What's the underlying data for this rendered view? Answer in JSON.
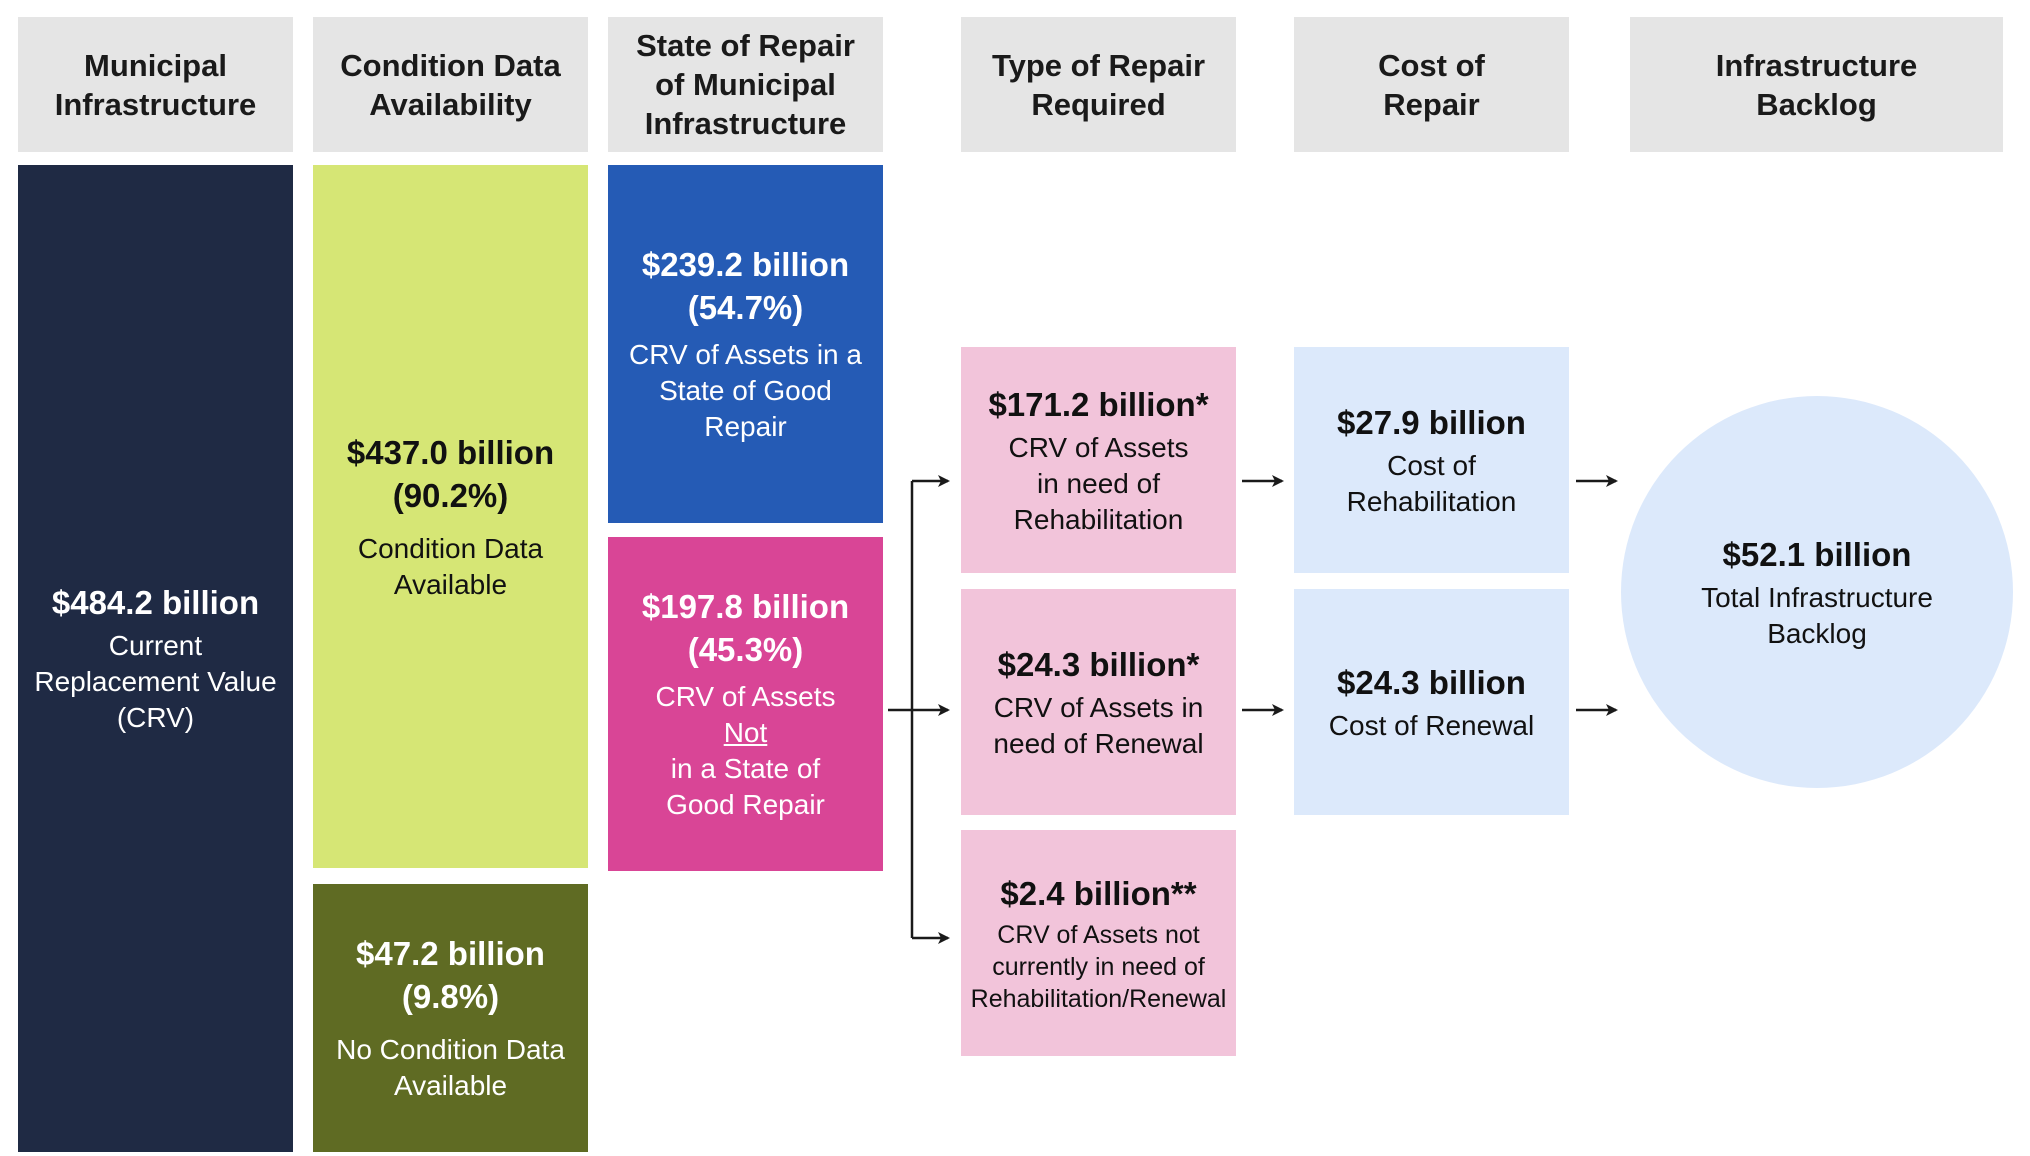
{
  "headers": {
    "municipal_infrastructure": [
      "Municipal",
      "Infrastructure"
    ],
    "condition_data": [
      "Condition Data",
      "Availability"
    ],
    "state_of_repair": [
      "State of Repair",
      "of Municipal",
      "Infrastructure"
    ],
    "type_of_repair": [
      "Type of Repair",
      "Required"
    ],
    "cost_of_repair": [
      "Cost of",
      "Repair"
    ],
    "backlog": [
      "Infrastructure",
      "Backlog"
    ]
  },
  "crv_total": {
    "value": "$484.2 billion",
    "desc": [
      "Current",
      "Replacement Value",
      "(CRV)"
    ],
    "color": "#1f2a44"
  },
  "condition_available": {
    "value": "$437.0 billion",
    "pct": "(90.2%)",
    "desc": [
      "Condition Data",
      "Available"
    ],
    "color": "#d6e675"
  },
  "condition_unavailable": {
    "value": "$47.2 billion",
    "pct": "(9.8%)",
    "desc": [
      "No Condition Data",
      "Available"
    ],
    "color": "#5f6b23"
  },
  "good_repair": {
    "value": "$239.2 billion",
    "pct": "(54.7%)",
    "desc": [
      "CRV of Assets in a",
      "State of Good Repair"
    ],
    "color": "#255bb5"
  },
  "not_good_repair": {
    "value": "$197.8 billion",
    "pct": "(45.3%)",
    "desc_line1": "CRV of Assets",
    "desc_line2_u": "Not",
    "desc_line2_rest": " in a State of",
    "desc_line3": "Good Repair",
    "color": "#d94596"
  },
  "rehabilitation_need": {
    "value": "$171.2 billion*",
    "desc": [
      "CRV of Assets",
      "in need of",
      "Rehabilitation"
    ],
    "color": "#f2c4da"
  },
  "renewal_need": {
    "value": "$24.3 billion*",
    "desc": [
      "CRV of Assets in",
      "need of Renewal"
    ],
    "color": "#f2c4da"
  },
  "no_need": {
    "value": "$2.4 billion**",
    "desc": [
      "CRV of Assets not",
      "currently in need of",
      "Rehabilitation/Renewal"
    ],
    "color": "#f2c4da"
  },
  "cost_rehabilitation": {
    "value": "$27.9 billion",
    "desc": [
      "Cost of",
      "Rehabilitation"
    ],
    "color": "#dce9fb"
  },
  "cost_renewal": {
    "value": "$24.3 billion",
    "desc": [
      "Cost of Renewal"
    ],
    "color": "#dce9fb"
  },
  "backlog_total": {
    "value": "$52.1 billion",
    "desc": [
      "Total Infrastructure",
      "Backlog"
    ],
    "color": "#dce9fb"
  }
}
